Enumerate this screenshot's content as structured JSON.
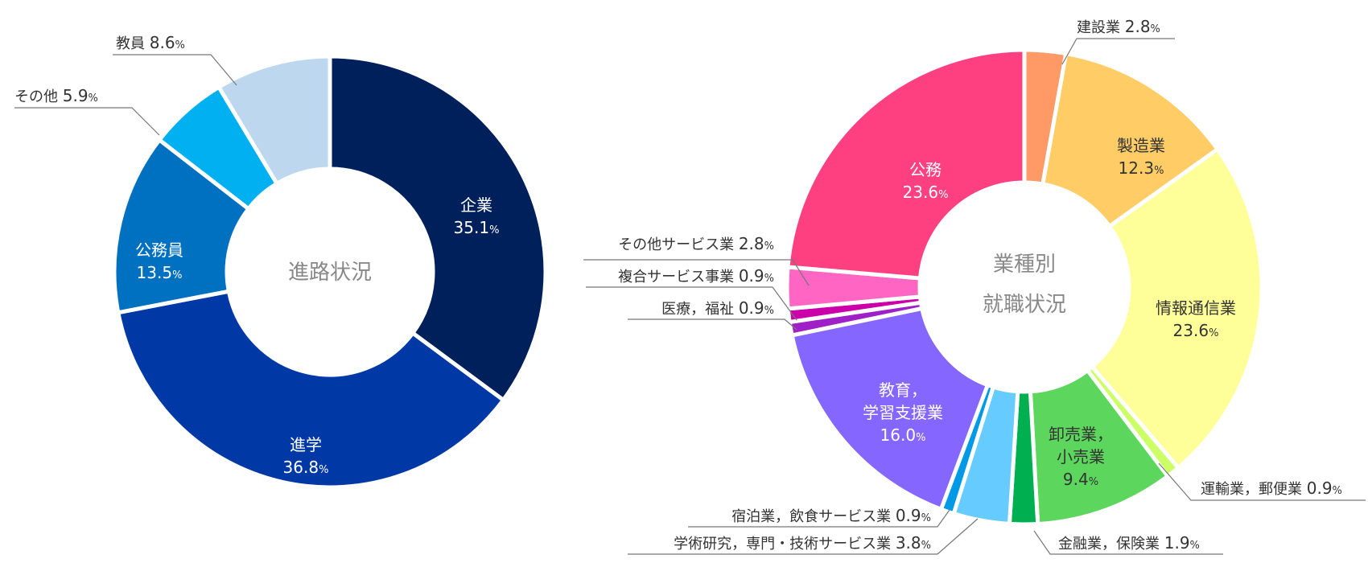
{
  "chart_data": [
    {
      "type": "pie",
      "subtype": "donut",
      "center_label": "進路状況",
      "unit": "%",
      "slices": [
        {
          "label": "企業",
          "value": 35.1,
          "color": "#00205B",
          "text_color": "#ffffff",
          "placement": "inside"
        },
        {
          "label": "進学",
          "value": 36.8,
          "color": "#0039A6",
          "text_color": "#ffffff",
          "placement": "inside"
        },
        {
          "label": "公務員",
          "value": 13.5,
          "color": "#0070C0",
          "text_color": "#ffffff",
          "placement": "inside"
        },
        {
          "label": "その他",
          "value": 5.9,
          "color": "#00B0F0",
          "text_color": "#333333",
          "placement": "outside"
        },
        {
          "label": "教員",
          "value": 8.6,
          "color": "#BDD7EE",
          "text_color": "#333333",
          "placement": "outside"
        }
      ]
    },
    {
      "type": "pie",
      "subtype": "donut",
      "center_label_lines": [
        "業種別",
        "就職状況"
      ],
      "unit": "%",
      "slices": [
        {
          "label": "建設業",
          "value": 2.8,
          "color": "#FF9966",
          "placement": "outside"
        },
        {
          "label": "製造業",
          "value": 12.3,
          "color": "#FFCC66",
          "text_color": "#333333",
          "placement": "inside"
        },
        {
          "label": "情報通信業",
          "value": 23.6,
          "color": "#FFFF99",
          "text_color": "#333333",
          "placement": "inside"
        },
        {
          "label": "運輸業，郵便業",
          "value": 0.9,
          "color": "#CCFF66",
          "placement": "outside"
        },
        {
          "label": "卸売業，小売業",
          "value": 9.4,
          "color": "#5CD65C",
          "text_color": "#333333",
          "placement": "inside"
        },
        {
          "label": "金融業，保険業",
          "value": 1.9,
          "color": "#00B050",
          "placement": "outside"
        },
        {
          "label": "学術研究，専門・技術サービス業",
          "value": 3.8,
          "color": "#66CCFF",
          "placement": "outside"
        },
        {
          "label": "宿泊業，飲食サービス業",
          "value": 0.9,
          "color": "#0099E6",
          "placement": "outside"
        },
        {
          "label": "教育，学習支援業",
          "value": 16.0,
          "color": "#8566FF",
          "text_color": "#ffffff",
          "placement": "inside"
        },
        {
          "label": "医療，福祉",
          "value": 0.9,
          "color": "#A020C8",
          "placement": "outside"
        },
        {
          "label": "複合サービス事業",
          "value": 0.9,
          "color": "#CC00AA",
          "placement": "outside"
        },
        {
          "label": "その他サービス業",
          "value": 2.8,
          "color": "#FF66C4",
          "placement": "outside"
        },
        {
          "label": "公務",
          "value": 23.6,
          "color": "#FF4080",
          "text_color": "#ffffff",
          "placement": "inside"
        }
      ]
    }
  ]
}
